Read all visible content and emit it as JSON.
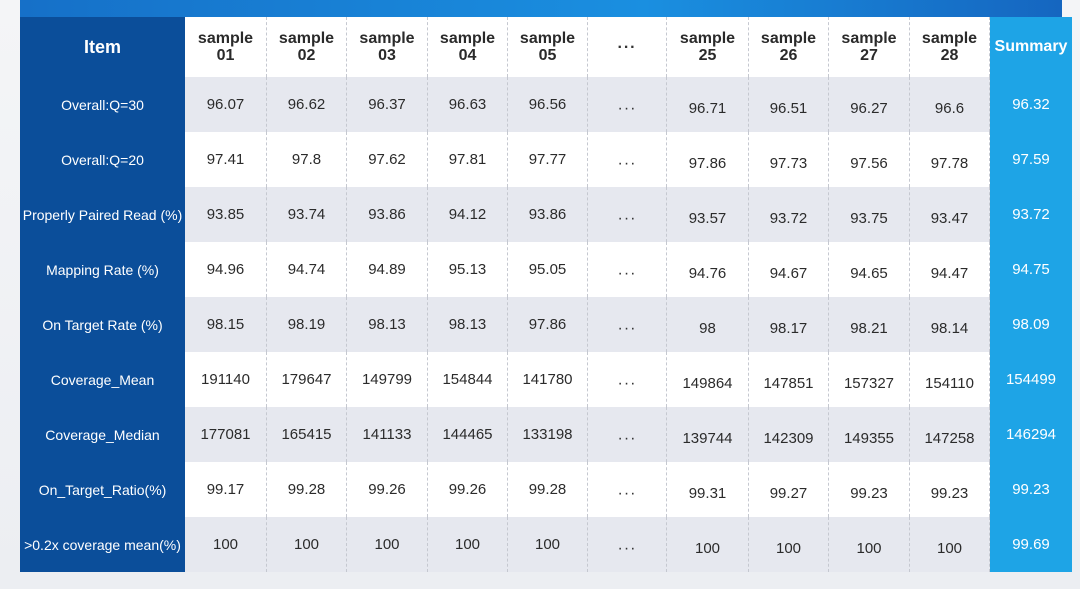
{
  "table": {
    "item_header": "Item",
    "summary_header": "Summary",
    "ellipsis": "···",
    "columns": [
      {
        "line1": "sample",
        "line2": "01"
      },
      {
        "line1": "sample",
        "line2": "02"
      },
      {
        "line1": "sample",
        "line2": "03"
      },
      {
        "line1": "sample",
        "line2": "04"
      },
      {
        "line1": "sample",
        "line2": "05"
      },
      {
        "line1": "sample",
        "line2": "25"
      },
      {
        "line1": "sample",
        "line2": "26"
      },
      {
        "line1": "sample",
        "line2": "27"
      },
      {
        "line1": "sample",
        "line2": "28"
      }
    ],
    "rows": [
      {
        "item": "Overall:Q=30",
        "values": [
          "96.07",
          "96.62",
          "96.37",
          "96.63",
          "96.56",
          "96.71",
          "96.51",
          "96.27",
          "96.6"
        ],
        "summary": "96.32"
      },
      {
        "item": "Overall:Q=20",
        "values": [
          "97.41",
          "97.8",
          "97.62",
          "97.81",
          "97.77",
          "97.86",
          "97.73",
          "97.56",
          "97.78"
        ],
        "summary": "97.59"
      },
      {
        "item": "Properly Paired Read (%)",
        "values": [
          "93.85",
          "93.74",
          "93.86",
          "94.12",
          "93.86",
          "93.57",
          "93.72",
          "93.75",
          "93.47"
        ],
        "summary": "93.72"
      },
      {
        "item": "Mapping Rate (%)",
        "values": [
          "94.96",
          "94.74",
          "94.89",
          "95.13",
          "95.05",
          "94.76",
          "94.67",
          "94.65",
          "94.47"
        ],
        "summary": "94.75"
      },
      {
        "item": "On Target Rate (%)",
        "values": [
          "98.15",
          "98.19",
          "98.13",
          "98.13",
          "97.86",
          "98",
          "98.17",
          "98.21",
          "98.14"
        ],
        "summary": "98.09"
      },
      {
        "item": "Coverage_Mean",
        "values": [
          "191140",
          "179647",
          "149799",
          "154844",
          "141780",
          "149864",
          "147851",
          "157327",
          "154110"
        ],
        "summary": "154499"
      },
      {
        "item": "Coverage_Median",
        "values": [
          "177081",
          "165415",
          "141133",
          "144465",
          "133198",
          "139744",
          "142309",
          "149355",
          "147258"
        ],
        "summary": "146294"
      },
      {
        "item": "On_Target_Ratio(%)",
        "values": [
          "99.17",
          "99.28",
          "99.26",
          "99.26",
          "99.28",
          "99.31",
          "99.27",
          "99.23",
          "99.23"
        ],
        "summary": "99.23"
      },
      {
        "item": ">0.2x coverage mean(%)",
        "values": [
          "100",
          "100",
          "100",
          "100",
          "100",
          "100",
          "100",
          "100",
          "100"
        ],
        "summary": "99.69"
      }
    ]
  }
}
